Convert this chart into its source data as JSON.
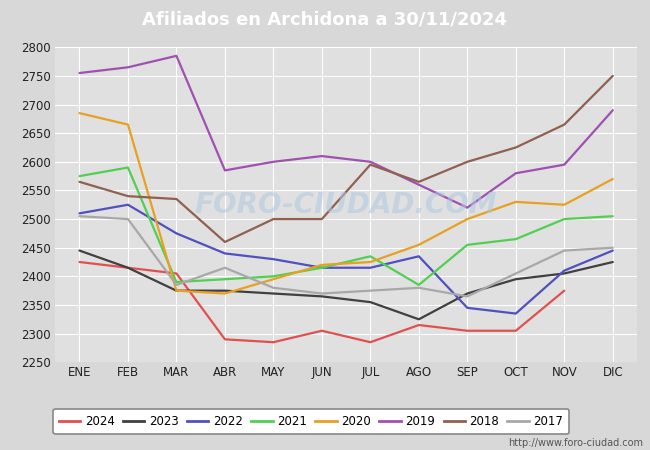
{
  "title": "Afiliados en Archidona a 30/11/2024",
  "title_bg_color": "#4a7cc7",
  "title_text_color": "white",
  "ylim": [
    2250,
    2800
  ],
  "yticks": [
    2250,
    2300,
    2350,
    2400,
    2450,
    2500,
    2550,
    2600,
    2650,
    2700,
    2750,
    2800
  ],
  "months": [
    "ENE",
    "FEB",
    "MAR",
    "ABR",
    "MAY",
    "JUN",
    "JUL",
    "AGO",
    "SEP",
    "OCT",
    "NOV",
    "DIC"
  ],
  "fig_bg_color": "#d8d8d8",
  "plot_bg_color": "#e0e0e0",
  "grid_color": "#ffffff",
  "watermark": "FORO-CIUDAD.COM",
  "url": "http://www.foro-ciudad.com",
  "series": {
    "2024": {
      "color": "#e05050",
      "data": [
        2425,
        2415,
        2405,
        2290,
        2285,
        2305,
        2285,
        2315,
        2305,
        2305,
        2375,
        null
      ]
    },
    "2023": {
      "color": "#404040",
      "data": [
        2445,
        2415,
        2375,
        2375,
        2370,
        2365,
        2355,
        2325,
        2370,
        2395,
        2405,
        2425
      ]
    },
    "2022": {
      "color": "#5050c0",
      "data": [
        2510,
        2525,
        2475,
        2440,
        2430,
        2415,
        2415,
        2435,
        2345,
        2335,
        2410,
        2445
      ]
    },
    "2021": {
      "color": "#50d050",
      "data": [
        2575,
        2590,
        2390,
        2395,
        2400,
        2415,
        2435,
        2385,
        2455,
        2465,
        2500,
        2505
      ]
    },
    "2020": {
      "color": "#e8a020",
      "data": [
        2685,
        2665,
        2375,
        2370,
        2395,
        2420,
        2425,
        2455,
        2500,
        2530,
        2525,
        2570
      ]
    },
    "2019": {
      "color": "#a050b0",
      "data": [
        2755,
        2765,
        2785,
        2585,
        2600,
        2610,
        2600,
        2560,
        2520,
        2580,
        2595,
        2690
      ]
    },
    "2018": {
      "color": "#906050",
      "data": [
        2565,
        2540,
        2535,
        2460,
        2500,
        2500,
        2595,
        2565,
        2600,
        2625,
        2665,
        2750
      ]
    },
    "2017": {
      "color": "#a8a8a8",
      "data": [
        2505,
        2500,
        2385,
        2415,
        2380,
        2370,
        2375,
        2380,
        2365,
        2405,
        2445,
        2450
      ]
    }
  },
  "legend_order": [
    "2024",
    "2023",
    "2022",
    "2021",
    "2020",
    "2019",
    "2018",
    "2017"
  ]
}
